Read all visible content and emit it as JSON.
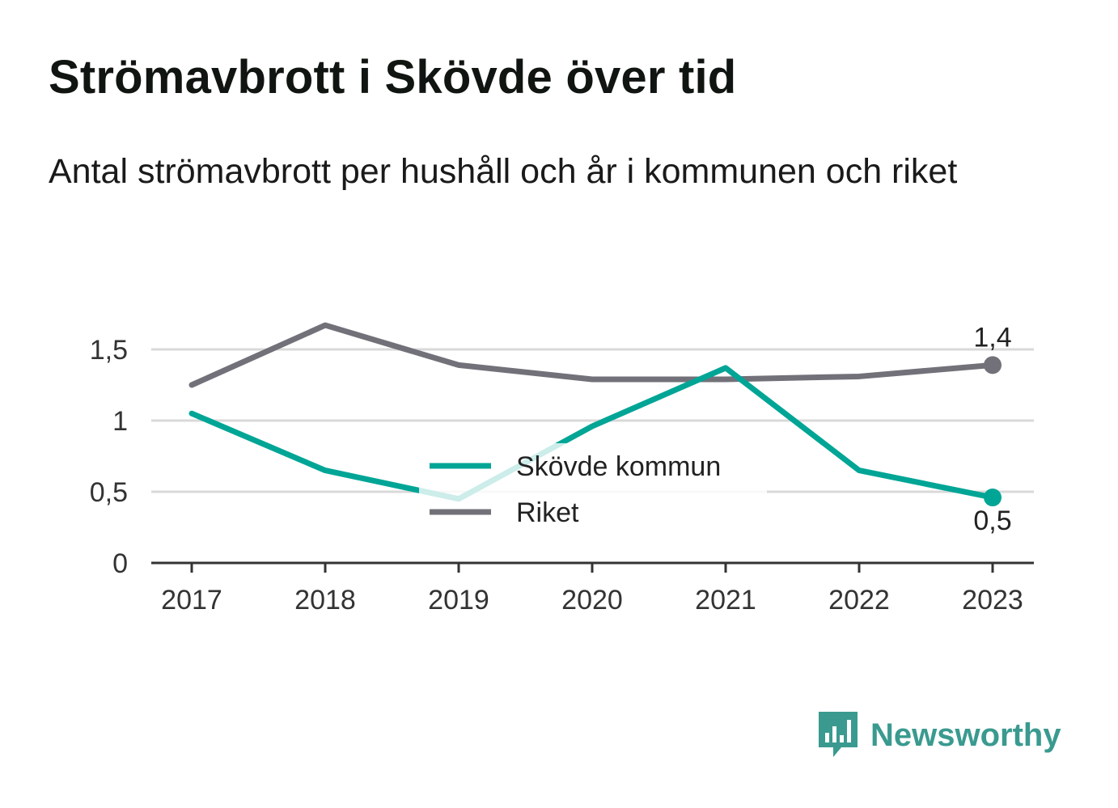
{
  "title": "Strömavbrott i Skövde över tid",
  "subtitle": "Antal strömavbrott per hushåll och år i kommunen och riket",
  "brand": {
    "name": "Newsworthy",
    "icon": "bar-chart-speech-bubble-icon",
    "color": "#3a9a8f"
  },
  "chart_data": {
    "type": "line",
    "x": [
      "2017",
      "2018",
      "2019",
      "2020",
      "2021",
      "2022",
      "2023"
    ],
    "series": [
      {
        "name": "Skövde kommun",
        "color": "#00a596",
        "values": [
          1.05,
          0.65,
          0.45,
          0.96,
          1.37,
          0.65,
          0.46
        ],
        "end_label": "0,5"
      },
      {
        "name": "Riket",
        "color": "#727179",
        "values": [
          1.25,
          1.67,
          1.39,
          1.29,
          1.29,
          1.31,
          1.39
        ],
        "end_label": "1,4"
      }
    ],
    "y_ticks": [
      {
        "value": 0,
        "label": "0"
      },
      {
        "value": 0.5,
        "label": "0,5"
      },
      {
        "value": 1,
        "label": "1"
      },
      {
        "value": 1.5,
        "label": "1,5"
      }
    ],
    "ylim": [
      0,
      1.7
    ],
    "grid": true,
    "legend_position": "center",
    "xlabel": "",
    "ylabel": ""
  }
}
